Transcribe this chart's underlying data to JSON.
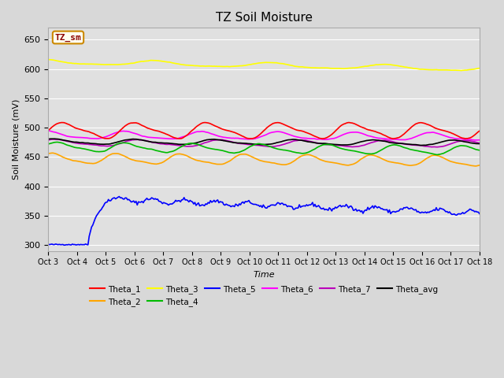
{
  "title": "TZ Soil Moisture",
  "xlabel": "Time",
  "ylabel": "Soil Moisture (mV)",
  "ylim": [
    290,
    670
  ],
  "yticks": [
    300,
    350,
    400,
    450,
    500,
    550,
    600,
    650
  ],
  "background_color": "#d8d8d8",
  "plot_bg_color": "#e0e0e0",
  "legend_label": "TZ_sm",
  "legend_label_color": "#8B0000",
  "legend_box_color": "#fffff0",
  "series": {
    "Theta_1": {
      "color": "#ff0000",
      "base": 495,
      "amplitude": 12,
      "trend": 0.0,
      "freq": 0.8,
      "phase": 0.0
    },
    "Theta_2": {
      "color": "#ffa500",
      "base": 447,
      "amplitude": 8,
      "trend": -0.3,
      "freq": 0.9,
      "phase": 1.0
    },
    "Theta_3": {
      "color": "#ffff00",
      "base": 612,
      "amplitude": 4,
      "trend": -0.8,
      "freq": 0.5,
      "phase": 2.0
    },
    "Theta_4": {
      "color": "#00bb00",
      "base": 467,
      "amplitude": 7,
      "trend": -0.4,
      "freq": 0.85,
      "phase": 0.5
    },
    "Theta_5": {
      "color": "#0000ff",
      "base": 300,
      "amplitude": 0,
      "trend": 0.0,
      "freq": 0.0,
      "phase": 0.0
    },
    "Theta_6": {
      "color": "#ff00ff",
      "base": 487,
      "amplitude": 6,
      "trend": -0.2,
      "freq": 0.75,
      "phase": 1.5
    },
    "Theta_7": {
      "color": "#bb00bb",
      "base": 474,
      "amplitude": 5,
      "trend": -0.15,
      "freq": 0.7,
      "phase": 0.8
    },
    "Theta_avg": {
      "color": "#000000",
      "base": 476,
      "amplitude": 4,
      "trend": -0.15,
      "freq": 0.72,
      "phase": 0.9
    }
  },
  "n_days": 15,
  "x_tick_labels": [
    "Oct 3",
    "Oct 4",
    "Oct 5",
    "Oct 6",
    "Oct 7",
    "Oct 8",
    "Oct 9",
    "Oct 10",
    "Oct 11",
    "Oct 12",
    "Oct 13",
    "Oct 14",
    "Oct 15",
    "Oct 16",
    "Oct 17",
    "Oct 18"
  ],
  "grid_color": "#ffffff",
  "title_fontsize": 11,
  "figsize": [
    6.4,
    4.8
  ],
  "dpi": 100
}
